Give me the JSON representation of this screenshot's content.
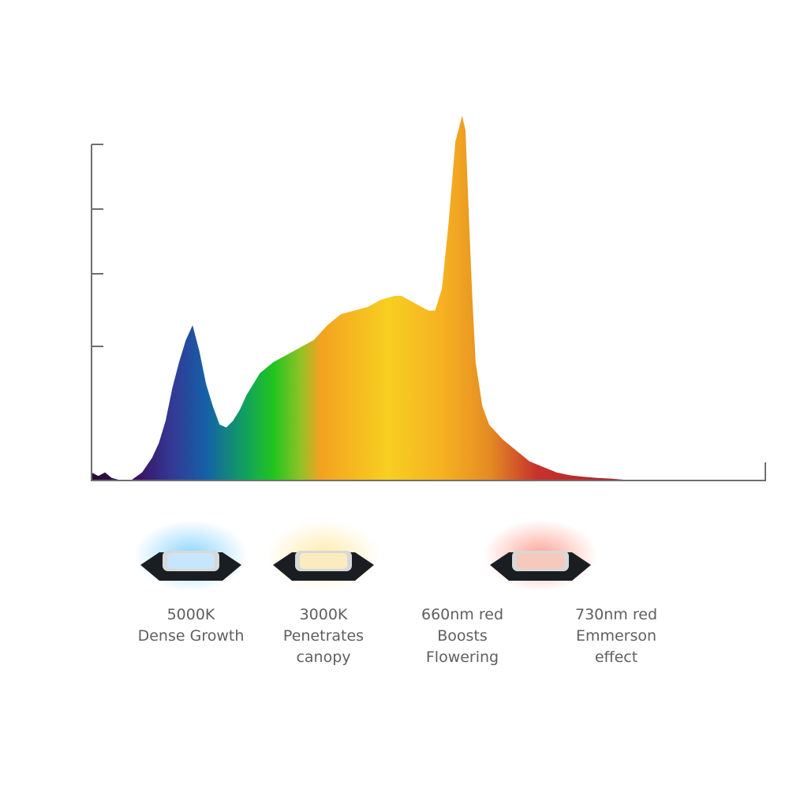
{
  "chart_data": {
    "type": "area",
    "title": "",
    "xlabel": "",
    "ylabel": "",
    "xlim": [
      380,
      780
    ],
    "ylim": [
      0,
      1
    ],
    "grid": false,
    "legend": "none",
    "y_ticks_count": 5,
    "series": [
      {
        "values": [
          [
            380,
            0.02
          ],
          [
            384,
            0.01
          ],
          [
            388,
            0.02
          ],
          [
            392,
            0.005
          ],
          [
            396,
            0.0
          ],
          [
            404,
            0.0
          ],
          [
            410,
            0.02
          ],
          [
            416,
            0.06
          ],
          [
            420,
            0.1
          ],
          [
            424,
            0.16
          ],
          [
            428,
            0.25
          ],
          [
            432,
            0.32
          ],
          [
            436,
            0.38
          ],
          [
            440,
            0.42
          ],
          [
            444,
            0.35
          ],
          [
            448,
            0.26
          ],
          [
            452,
            0.2
          ],
          [
            456,
            0.15
          ],
          [
            460,
            0.142
          ],
          [
            464,
            0.16
          ],
          [
            468,
            0.19
          ],
          [
            472,
            0.23
          ],
          [
            476,
            0.26
          ],
          [
            480,
            0.29
          ],
          [
            488,
            0.32
          ],
          [
            496,
            0.34
          ],
          [
            504,
            0.36
          ],
          [
            512,
            0.38
          ],
          [
            520,
            0.42
          ],
          [
            528,
            0.45
          ],
          [
            536,
            0.46
          ],
          [
            544,
            0.47
          ],
          [
            552,
            0.49
          ],
          [
            560,
            0.5
          ],
          [
            564,
            0.5
          ],
          [
            568,
            0.49
          ],
          [
            576,
            0.47
          ],
          [
            580,
            0.46
          ],
          [
            584,
            0.46
          ],
          [
            588,
            0.52
          ],
          [
            592,
            0.7
          ],
          [
            596,
            0.92
          ],
          [
            600,
            0.99
          ],
          [
            602,
            0.95
          ],
          [
            604,
            0.72
          ],
          [
            606,
            0.5
          ],
          [
            608,
            0.32
          ],
          [
            612,
            0.2
          ],
          [
            616,
            0.15
          ],
          [
            624,
            0.11
          ],
          [
            632,
            0.08
          ],
          [
            640,
            0.05
          ],
          [
            648,
            0.035
          ],
          [
            656,
            0.02
          ],
          [
            664,
            0.012
          ],
          [
            672,
            0.008
          ],
          [
            680,
            0.005
          ],
          [
            688,
            0.003
          ],
          [
            696,
            0.0
          ],
          [
            780,
            0.0
          ]
        ]
      }
    ]
  },
  "leds": [
    {
      "line1": "5000K",
      "line2": "Dense Growth",
      "line3": "",
      "glow": "#7fd0ff",
      "chip": "#c7e6fb"
    },
    {
      "line1": "3000K",
      "line2": "Penetrates",
      "line3": "canopy",
      "glow": "#ffe9a3",
      "chip": "#fbecc0"
    },
    {
      "line1": "660nm red",
      "line2": "Boosts",
      "line3": "Flowering",
      "glow": "",
      "chip": ""
    },
    {
      "line1": "730nm red",
      "line2": "Emmerson",
      "line3": "effect",
      "glow": "#ff9a8a",
      "chip": "#f6c9bd"
    }
  ]
}
